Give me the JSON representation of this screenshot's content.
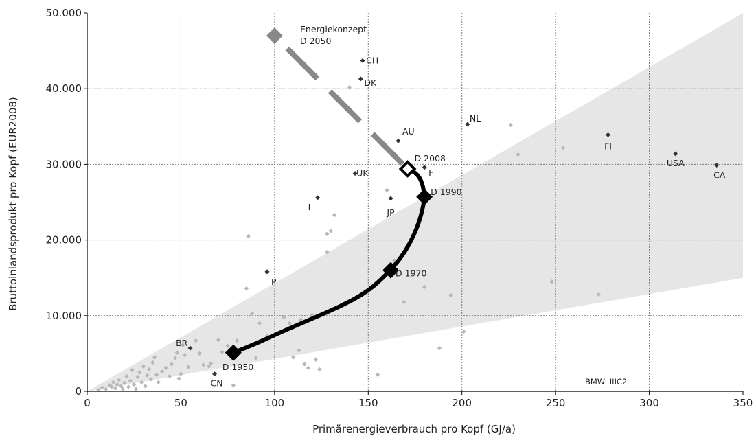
{
  "chart_data": {
    "type": "scatter",
    "xlabel": "Primärenergieverbrauch pro Kopf (GJ/a)",
    "ylabel": "Bruttoinlandsprodukt pro Kopf (EUR2008)",
    "xlim": [
      0,
      350
    ],
    "ylim": [
      0,
      50000
    ],
    "x_ticks": [
      0,
      50,
      100,
      150,
      200,
      250,
      300,
      350
    ],
    "y_ticks": [
      0,
      10000,
      20000,
      30000,
      40000,
      50000
    ],
    "x_tick_labels": [
      "0",
      "50",
      "100",
      "150",
      "200",
      "250",
      "300",
      "350"
    ],
    "y_tick_labels": [
      "0",
      "10.000",
      "20.000",
      "30.000",
      "40.000",
      "50.000"
    ],
    "grid": true,
    "credit": "BMWi IIIC2",
    "shaded_band": {
      "lower": [
        [
          0,
          0
        ],
        [
          350,
          15000
        ]
      ],
      "upper": [
        [
          0,
          0
        ],
        [
          350,
          50000
        ]
      ],
      "color": "#e6e6e6"
    },
    "countries": [
      {
        "label": "CH",
        "x": 147,
        "y": 43700
      },
      {
        "label": "DK",
        "x": 146,
        "y": 41300
      },
      {
        "label": "NL",
        "x": 203,
        "y": 35300
      },
      {
        "label": "AU",
        "x": 166,
        "y": 33100
      },
      {
        "label": "FI",
        "x": 278,
        "y": 33900
      },
      {
        "label": "USA",
        "x": 314,
        "y": 31400
      },
      {
        "label": "CA",
        "x": 336,
        "y": 29900
      },
      {
        "label": "F",
        "x": 180,
        "y": 29600
      },
      {
        "label": "UK",
        "x": 143,
        "y": 28800
      },
      {
        "label": "JP",
        "x": 162,
        "y": 25500
      },
      {
        "label": "I",
        "x": 123,
        "y": 25600
      },
      {
        "label": "P",
        "x": 96,
        "y": 15800
      },
      {
        "label": "BR",
        "x": 55,
        "y": 5700
      },
      {
        "label": "CN",
        "x": 68,
        "y": 2300
      }
    ],
    "germany_path": {
      "name": "D",
      "points": [
        [
          78,
          5100
        ],
        [
          90,
          6300
        ],
        [
          105,
          8000
        ],
        [
          120,
          9600
        ],
        [
          135,
          11200
        ],
        [
          150,
          13200
        ],
        [
          162,
          16000
        ],
        [
          170,
          18500
        ],
        [
          176,
          21500
        ],
        [
          179,
          24000
        ],
        [
          180,
          25700
        ],
        [
          179,
          27500
        ],
        [
          176,
          28800
        ],
        [
          171,
          29400
        ]
      ],
      "markers": [
        {
          "label": "D 1950",
          "x": 78,
          "y": 5100,
          "style": "filled"
        },
        {
          "label": "D 1970",
          "x": 162,
          "y": 16000,
          "style": "filled"
        },
        {
          "label": "D 1990",
          "x": 180,
          "y": 25700,
          "style": "filled"
        },
        {
          "label": "D 2008",
          "x": 171,
          "y": 29400,
          "style": "open"
        }
      ]
    },
    "target_path": {
      "label": "Energiekonzept D 2050",
      "label_lines": [
        "Energiekonzept",
        "D 2050"
      ],
      "from": [
        171,
        29400
      ],
      "to": [
        100,
        47000
      ],
      "color": "#888888",
      "marker": {
        "x": 100,
        "y": 47000
      }
    },
    "other_countries": [
      [
        6,
        200
      ],
      [
        8,
        500
      ],
      [
        10,
        300
      ],
      [
        12,
        800
      ],
      [
        13,
        600
      ],
      [
        14,
        1200
      ],
      [
        15,
        400
      ],
      [
        16,
        900
      ],
      [
        17,
        1500
      ],
      [
        18,
        700
      ],
      [
        19,
        300
      ],
      [
        20,
        1100
      ],
      [
        21,
        2000
      ],
      [
        22,
        600
      ],
      [
        23,
        1400
      ],
      [
        24,
        2800
      ],
      [
        25,
        900
      ],
      [
        26,
        300
      ],
      [
        27,
        1900
      ],
      [
        28,
        2500
      ],
      [
        29,
        1200
      ],
      [
        30,
        3300
      ],
      [
        31,
        700
      ],
      [
        32,
        2100
      ],
      [
        33,
        2900
      ],
      [
        34,
        1600
      ],
      [
        35,
        3800
      ],
      [
        36,
        4500
      ],
      [
        37,
        2200
      ],
      [
        38,
        1200
      ],
      [
        40,
        2600
      ],
      [
        42,
        3100
      ],
      [
        44,
        2000
      ],
      [
        45,
        3600
      ],
      [
        47,
        4400
      ],
      [
        48,
        5100
      ],
      [
        49,
        1700
      ],
      [
        50,
        2300
      ],
      [
        51,
        6100
      ],
      [
        52,
        4800
      ],
      [
        54,
        3200
      ],
      [
        58,
        6700
      ],
      [
        62,
        3500
      ],
      [
        65,
        3300
      ],
      [
        70,
        6800
      ],
      [
        75,
        6000
      ],
      [
        78,
        800
      ],
      [
        80,
        6700
      ],
      [
        82,
        5600
      ],
      [
        85,
        13600
      ],
      [
        86,
        20500
      ],
      [
        88,
        10300
      ],
      [
        90,
        4400
      ],
      [
        92,
        9000
      ],
      [
        96,
        7300
      ],
      [
        105,
        9800
      ],
      [
        108,
        9000
      ],
      [
        110,
        4500
      ],
      [
        113,
        5400
      ],
      [
        114,
        9500
      ],
      [
        116,
        3600
      ],
      [
        118,
        3100
      ],
      [
        120,
        10100
      ],
      [
        122,
        4200
      ],
      [
        124,
        2900
      ],
      [
        128,
        18400
      ],
      [
        128,
        20800
      ],
      [
        130,
        21200
      ],
      [
        132,
        23300
      ],
      [
        140,
        40200
      ],
      [
        142,
        12200
      ],
      [
        155,
        2200
      ],
      [
        160,
        26600
      ],
      [
        164,
        17300
      ],
      [
        168,
        18100
      ],
      [
        169,
        11800
      ],
      [
        180,
        13800
      ],
      [
        194,
        12700
      ],
      [
        188,
        5700
      ],
      [
        201,
        7900
      ],
      [
        226,
        35200
      ],
      [
        230,
        31300
      ],
      [
        254,
        32200
      ],
      [
        248,
        14500
      ],
      [
        273,
        12800
      ],
      [
        60,
        5000
      ],
      [
        66,
        3700
      ],
      [
        72,
        5200
      ]
    ]
  }
}
